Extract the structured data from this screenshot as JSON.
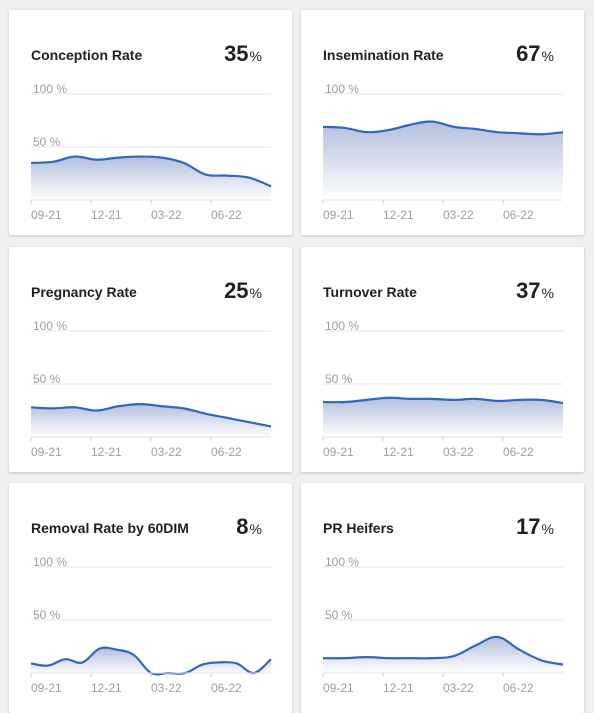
{
  "colors": {
    "line": "#3366c0",
    "fill_top": "#b3bfdc",
    "fill_bottom": "#ffffff",
    "grid": "#e4e4e4"
  },
  "cards": [
    {
      "title": "Conception Rate",
      "value": "35",
      "unit": "%"
    },
    {
      "title": "Insemination Rate",
      "value": "67",
      "unit": "%"
    },
    {
      "title": "Pregnancy Rate",
      "value": "25",
      "unit": "%"
    },
    {
      "title": "Turnover Rate",
      "value": "37",
      "unit": "%"
    },
    {
      "title": "Removal Rate by 60DIM",
      "value": "8",
      "unit": "%"
    },
    {
      "title": "PR Heifers",
      "value": "17",
      "unit": "%"
    }
  ],
  "chart_data": [
    {
      "type": "area",
      "ylim": [
        0,
        100
      ],
      "y_ticks": [
        "100 %",
        "50 %"
      ],
      "x_ticks": [
        "09-21",
        "12-21",
        "03-22",
        "06-22"
      ],
      "x": [
        "09-21",
        "10-21",
        "11-21",
        "12-21",
        "01-22",
        "02-22",
        "03-22",
        "04-22",
        "05-22",
        "06-22",
        "07-22",
        "08-22"
      ],
      "values": [
        35,
        36,
        41,
        38,
        40,
        41,
        40,
        35,
        24,
        23,
        21,
        13
      ]
    },
    {
      "type": "area",
      "ylim": [
        0,
        100
      ],
      "y_ticks": [
        "100 %",
        "50 %"
      ],
      "x_ticks": [
        "09-21",
        "12-21",
        "03-22",
        "06-22"
      ],
      "x": [
        "09-21",
        "10-21",
        "11-21",
        "12-21",
        "01-22",
        "02-22",
        "03-22",
        "04-22",
        "05-22",
        "06-22",
        "07-22",
        "08-22"
      ],
      "values": [
        69,
        68,
        64,
        66,
        71,
        74,
        69,
        67,
        64,
        63,
        62,
        64
      ]
    },
    {
      "type": "area",
      "ylim": [
        0,
        100
      ],
      "y_ticks": [
        "100 %",
        "50 %"
      ],
      "x_ticks": [
        "09-21",
        "12-21",
        "03-22",
        "06-22"
      ],
      "x": [
        "09-21",
        "10-21",
        "11-21",
        "12-21",
        "01-22",
        "02-22",
        "03-22",
        "04-22",
        "05-22",
        "06-22",
        "07-22",
        "08-22"
      ],
      "values": [
        28,
        27,
        28,
        25,
        29,
        31,
        29,
        27,
        22,
        18,
        14,
        10
      ]
    },
    {
      "type": "area",
      "ylim": [
        0,
        100
      ],
      "y_ticks": [
        "100 %",
        "50 %"
      ],
      "x_ticks": [
        "09-21",
        "12-21",
        "03-22",
        "06-22"
      ],
      "x": [
        "09-21",
        "10-21",
        "11-21",
        "12-21",
        "01-22",
        "02-22",
        "03-22",
        "04-22",
        "05-22",
        "06-22",
        "07-22",
        "08-22"
      ],
      "values": [
        33,
        33,
        35,
        37,
        36,
        36,
        35,
        36,
        34,
        35,
        35,
        32
      ]
    },
    {
      "type": "area",
      "ylim": [
        0,
        100
      ],
      "y_ticks": [
        "100 %",
        "50 %"
      ],
      "x_ticks": [
        "09-21",
        "12-21",
        "03-22",
        "06-22"
      ],
      "x": [
        "09-21",
        "09-21b",
        "10-21",
        "11-21",
        "11-21b",
        "12-21",
        "01-22",
        "02-22",
        "02-22b",
        "03-22",
        "04-22",
        "05-22",
        "06-22",
        "07-22",
        "08-22"
      ],
      "values": [
        9,
        7,
        13,
        10,
        23,
        22,
        17,
        0,
        0,
        0,
        8,
        10,
        9,
        0,
        13
      ]
    },
    {
      "type": "area",
      "ylim": [
        0,
        100
      ],
      "y_ticks": [
        "100 %",
        "50 %"
      ],
      "x_ticks": [
        "09-21",
        "12-21",
        "03-22",
        "06-22"
      ],
      "x": [
        "09-21",
        "10-21",
        "11-21",
        "12-21",
        "01-22",
        "02-22",
        "03-22",
        "04-22",
        "05-22",
        "06-22",
        "07-22",
        "08-22"
      ],
      "values": [
        14,
        14,
        15,
        14,
        14,
        14,
        16,
        26,
        34,
        22,
        12,
        8
      ]
    }
  ]
}
